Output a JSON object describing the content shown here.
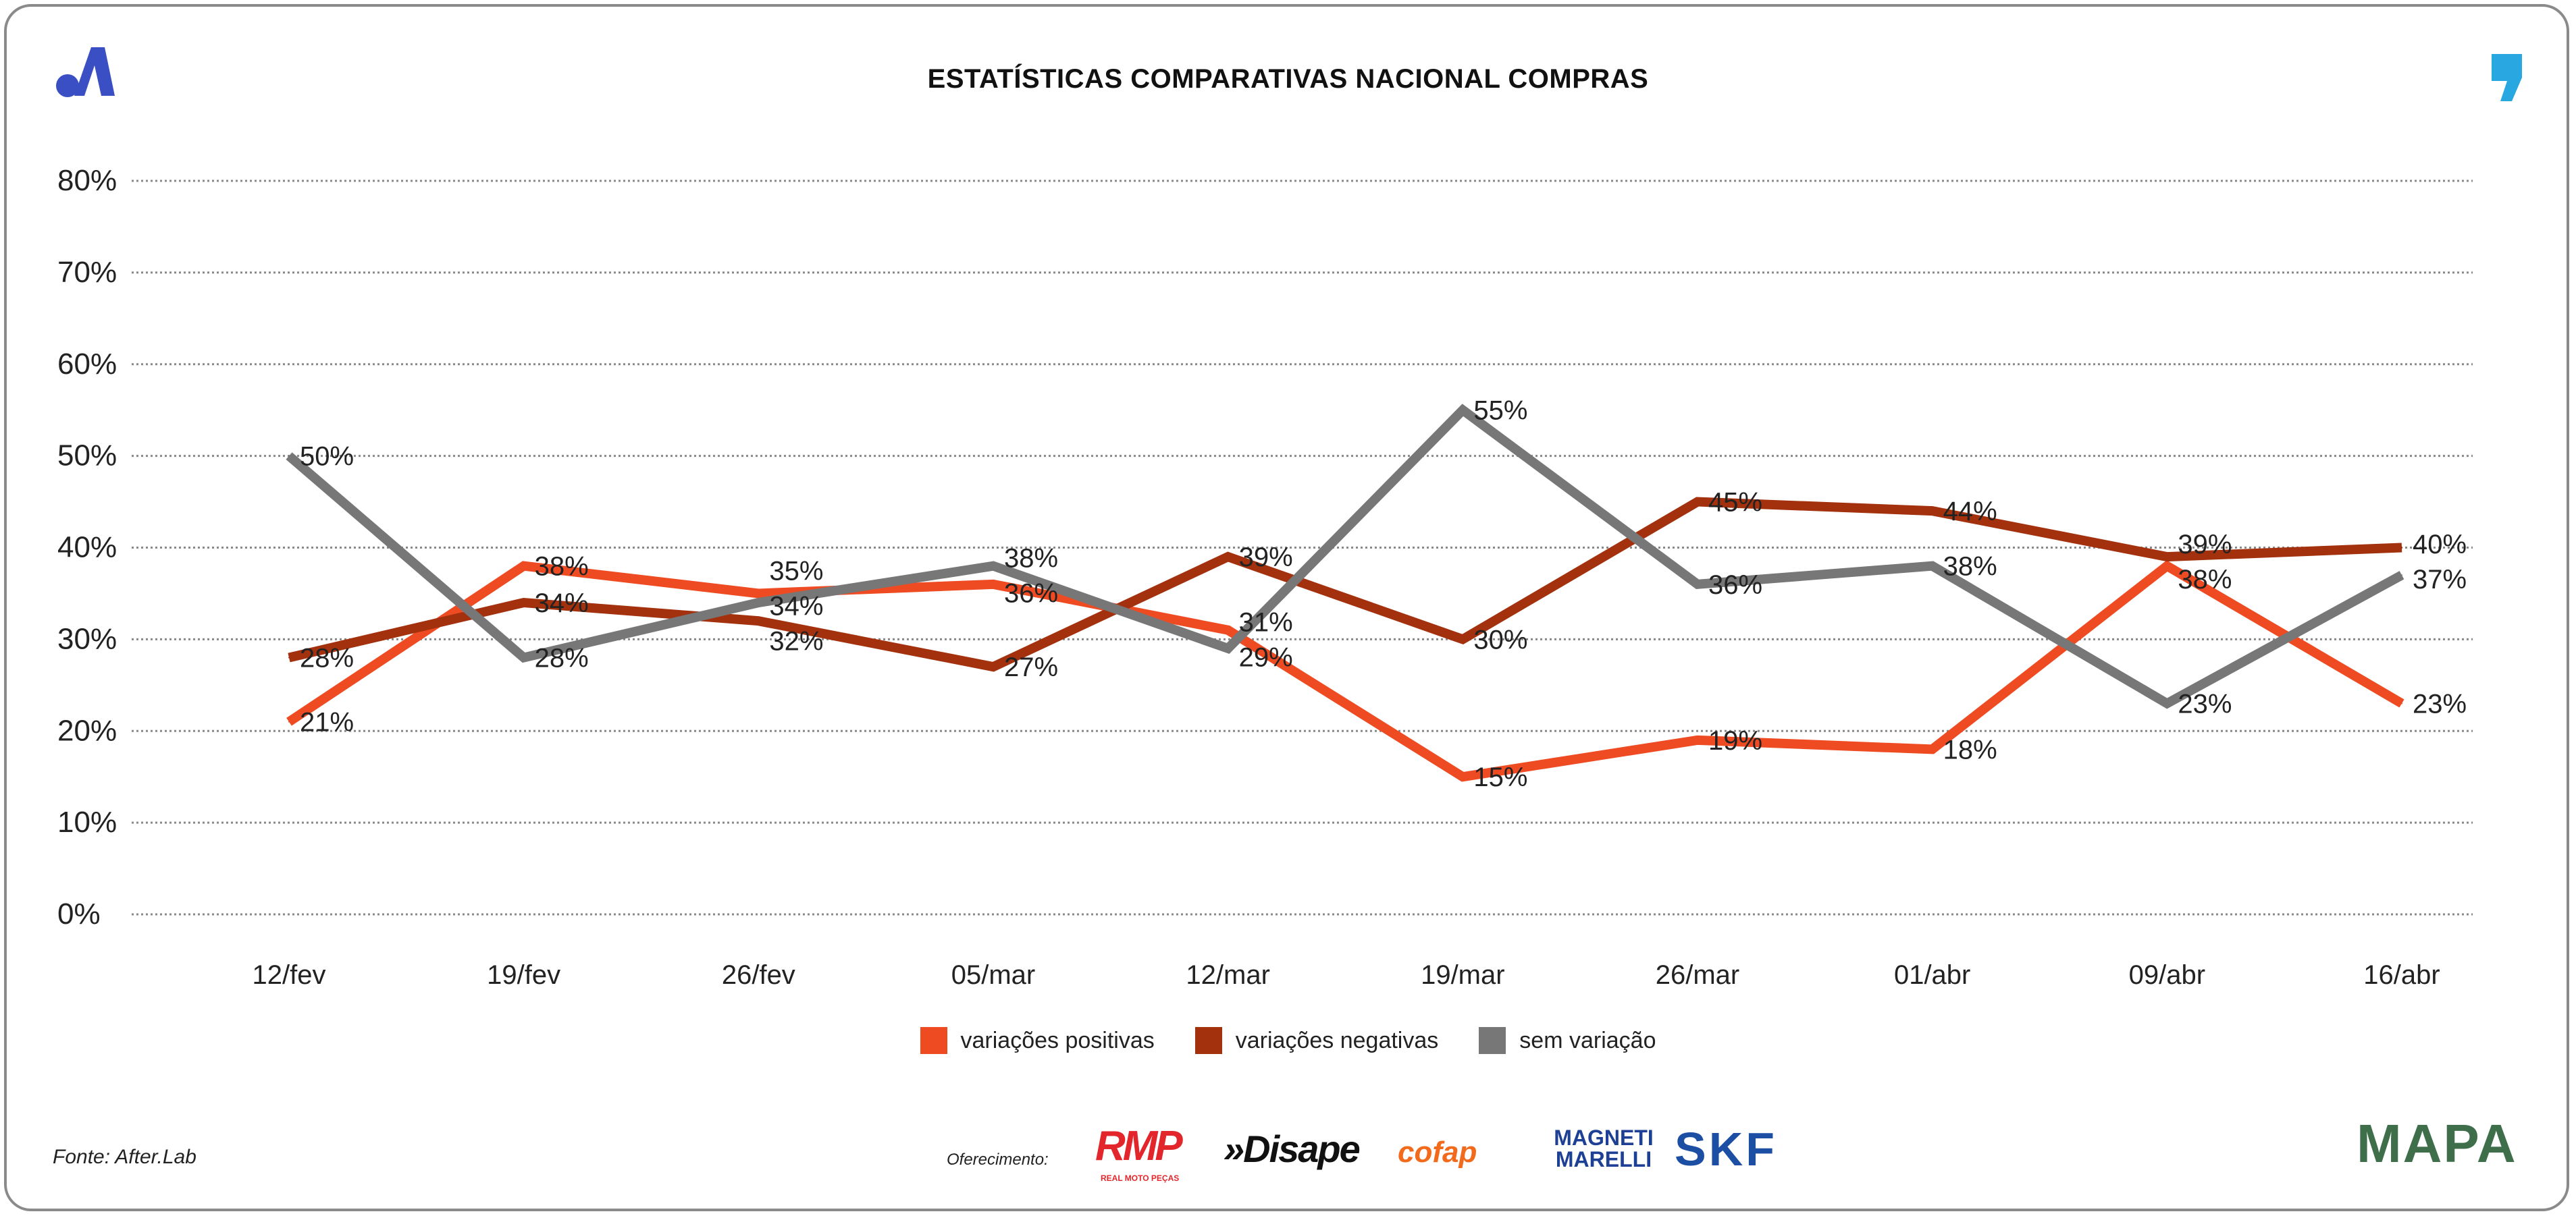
{
  "chart_data": {
    "type": "line",
    "title": "ESTATÍSTICAS COMPARATIVAS NACIONAL COMPRAS",
    "xlabel": "",
    "ylabel": "",
    "ylim": [
      0,
      80
    ],
    "yticks": [
      "0%",
      "10%",
      "20%",
      "30%",
      "40%",
      "50%",
      "60%",
      "70%",
      "80%"
    ],
    "grid": true,
    "legend_position": "bottom",
    "categories": [
      "12/fev",
      "19/fev",
      "26/fev",
      "05/mar",
      "12/mar",
      "19/mar",
      "26/mar",
      "01/abr",
      "09/abr",
      "16/abr"
    ],
    "series": [
      {
        "name": "variações positivas",
        "color": "#ef4b23",
        "values": [
          21,
          38,
          35,
          36,
          31,
          15,
          19,
          18,
          38,
          23
        ]
      },
      {
        "name": "variações negativas",
        "color": "#a3310e",
        "values": [
          28,
          34,
          32,
          27,
          39,
          30,
          45,
          44,
          39,
          40
        ]
      },
      {
        "name": "sem variação",
        "color": "#777777",
        "values": [
          50,
          28,
          34,
          38,
          29,
          55,
          36,
          38,
          23,
          37
        ]
      }
    ]
  },
  "footer": {
    "source": "Fonte: After.Lab",
    "offer_label": "Oferecimento:",
    "sponsors": [
      "RMP",
      "REAL MOTO PEÇAS",
      "»Disape",
      "cofap",
      "MAGNETI MARELLI",
      "SKF",
      "MAPA"
    ]
  }
}
